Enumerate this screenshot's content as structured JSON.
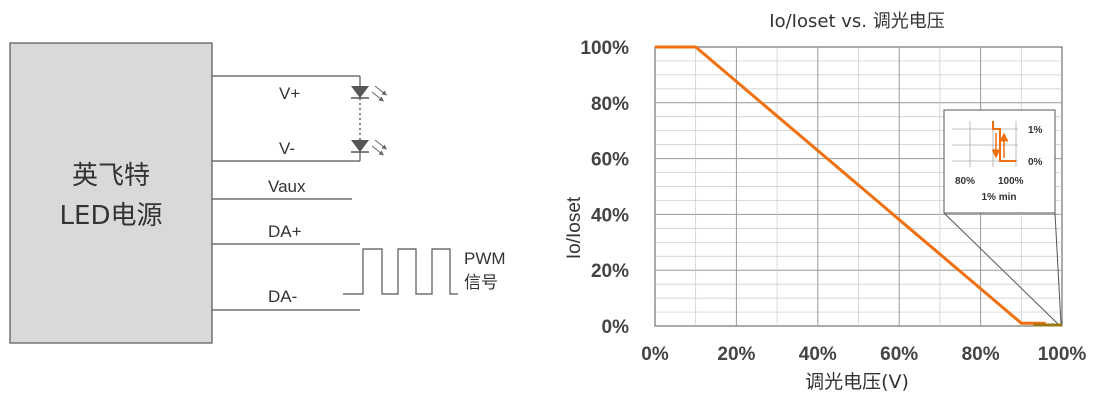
{
  "wiring": {
    "box_label_line1": "英飞特",
    "box_label_line2": "LED电源",
    "pins": [
      "V+",
      "V-",
      "Vaux",
      "DA+",
      "DA-"
    ],
    "pwm_label_line1": "PWM",
    "pwm_label_line2": "信号"
  },
  "chart_data": {
    "type": "line",
    "title": "Io/Ioset vs. 调光电压",
    "xlabel": "调光电压(V)",
    "ylabel": "Io/Ioset",
    "x_tick_labels": [
      "0%",
      "20%",
      "40%",
      "60%",
      "80%",
      "100%"
    ],
    "y_tick_labels": [
      "0%",
      "20%",
      "40%",
      "60%",
      "80%",
      "100%"
    ],
    "xlim": [
      0,
      100
    ],
    "ylim": [
      0,
      100
    ],
    "grid": true,
    "series": [
      {
        "color": "#f07010",
        "points": [
          [
            0,
            100
          ],
          [
            10,
            100
          ],
          [
            90,
            1
          ],
          [
            96,
            1
          ]
        ]
      }
    ],
    "inset": {
      "y_labels": [
        "1%",
        "0%"
      ],
      "x_labels": [
        "80%",
        "100%"
      ],
      "caption": "1% min"
    },
    "colors": {
      "curve": "#f07010",
      "tail": "#9a7a10",
      "box_fill": "#d9d9d9"
    }
  }
}
